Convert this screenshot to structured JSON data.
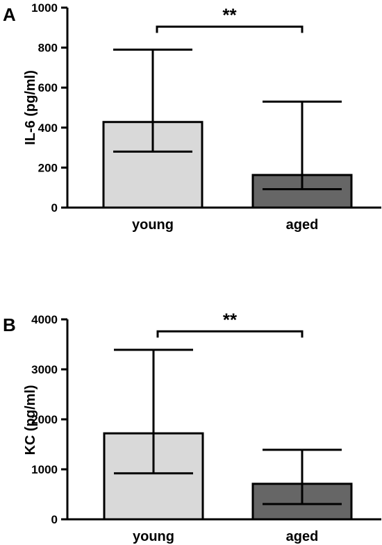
{
  "chart_data": [
    {
      "type": "bar",
      "panel_label": "A",
      "categories": [
        "young",
        "aged"
      ],
      "values": [
        428,
        163
      ],
      "error_low": [
        280,
        92
      ],
      "error_high": [
        790,
        530
      ],
      "bar_colors": [
        "#d9d9d9",
        "#666666"
      ],
      "ylabel": "IL-6 (pg/ml)",
      "ylim": [
        0,
        1000
      ],
      "yticks": [
        0,
        200,
        400,
        600,
        800,
        1000
      ],
      "significance": {
        "label": "**",
        "between": [
          "young",
          "aged"
        ],
        "y": 905
      }
    },
    {
      "type": "bar",
      "panel_label": "B",
      "categories": [
        "young",
        "aged"
      ],
      "values": [
        1720,
        710
      ],
      "error_low": [
        920,
        305
      ],
      "error_high": [
        3390,
        1390
      ],
      "bar_colors": [
        "#d9d9d9",
        "#666666"
      ],
      "ylabel": "KC (pg/ml)",
      "ylim": [
        0,
        4000
      ],
      "yticks": [
        0,
        1000,
        2000,
        3000,
        4000
      ],
      "significance": {
        "label": "**",
        "between": [
          "young",
          "aged"
        ],
        "y": 3760
      }
    }
  ]
}
